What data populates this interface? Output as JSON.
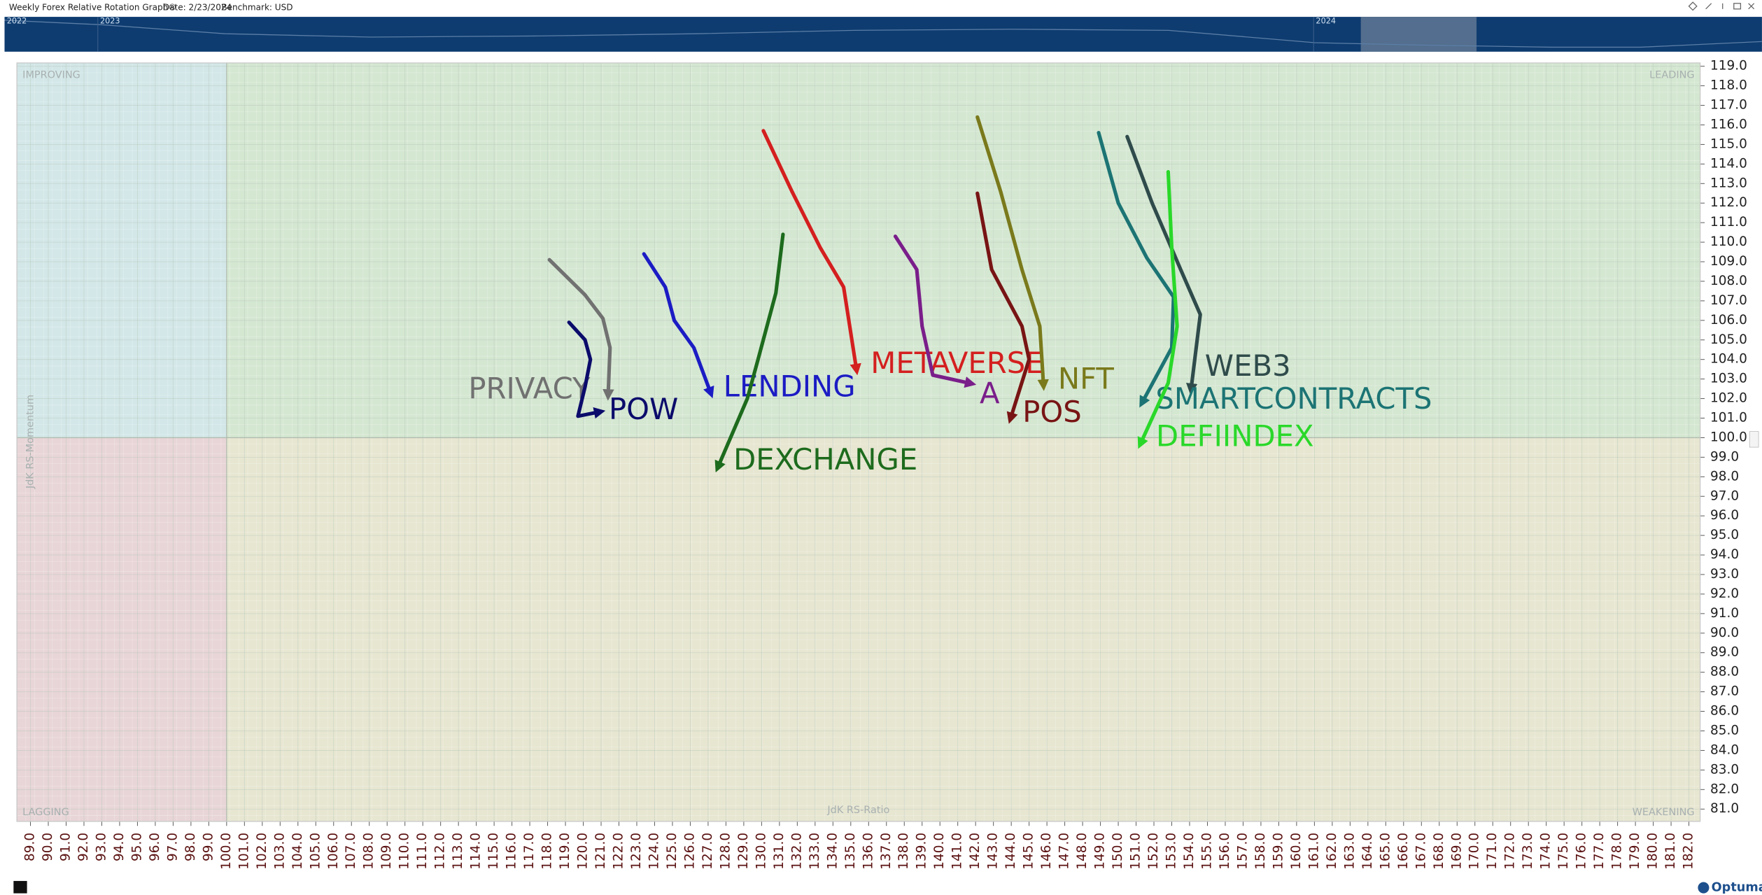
{
  "header": {
    "title": "Weekly Forex Relative Rotation Graph®",
    "date": "Date: 2/23/2024",
    "benchmark": "Benchmark:  USD"
  },
  "timeline": {
    "years": [
      "2022",
      "2023",
      "2024"
    ]
  },
  "footer": {
    "logo": "Optuma"
  },
  "chart_data": {
    "type": "rrg",
    "x_label": "JdK RS-Ratio",
    "y_label": "JdK RS-Momentum",
    "quadrants": {
      "improving": "IMPROVING",
      "leading": "LEADING",
      "lagging": "LAGGING",
      "weakening": "WEAKENING"
    },
    "quadrant_center": [
      100,
      100
    ],
    "grid": true,
    "xlim": [
      88.24,
      182.63
    ],
    "ylim": [
      80.37,
      119.17
    ],
    "xticks": [
      {
        "value": 89,
        "label": "89.0"
      },
      {
        "value": 90,
        "label": "90.0"
      },
      {
        "value": 91,
        "label": "91.0"
      },
      {
        "value": 92,
        "label": "92.0"
      },
      {
        "value": 93,
        "label": "93.0"
      },
      {
        "value": 94,
        "label": "94.0"
      },
      {
        "value": 95,
        "label": "95.0"
      },
      {
        "value": 96,
        "label": "96.0"
      },
      {
        "value": 97,
        "label": "97.0"
      },
      {
        "value": 98,
        "label": "98.0"
      },
      {
        "value": 99,
        "label": "99.0"
      },
      {
        "value": 100,
        "label": "100.0"
      },
      {
        "value": 101,
        "label": "101.0"
      },
      {
        "value": 102,
        "label": "102.0"
      },
      {
        "value": 103,
        "label": "103.0"
      },
      {
        "value": 104,
        "label": "104.0"
      },
      {
        "value": 105,
        "label": "105.0"
      },
      {
        "value": 106,
        "label": "106.0"
      },
      {
        "value": 107,
        "label": "107.0"
      },
      {
        "value": 108,
        "label": "108.0"
      },
      {
        "value": 109,
        "label": "109.0"
      },
      {
        "value": 110,
        "label": "110.0"
      },
      {
        "value": 111,
        "label": "111.0"
      },
      {
        "value": 112,
        "label": "112.0"
      },
      {
        "value": 113,
        "label": "113.0"
      },
      {
        "value": 114,
        "label": "114.0"
      },
      {
        "value": 115,
        "label": "115.0"
      },
      {
        "value": 116,
        "label": "116.0"
      },
      {
        "value": 117,
        "label": "117.0"
      },
      {
        "value": 118,
        "label": "118.0"
      },
      {
        "value": 119,
        "label": "119.0"
      },
      {
        "value": 120,
        "label": "120.0"
      },
      {
        "value": 121,
        "label": "121.0"
      },
      {
        "value": 122,
        "label": "122.0"
      },
      {
        "value": 123,
        "label": "123.0"
      },
      {
        "value": 124,
        "label": "124.0"
      },
      {
        "value": 125,
        "label": "125.0"
      },
      {
        "value": 126,
        "label": "126.0"
      },
      {
        "value": 127,
        "label": "127.0"
      },
      {
        "value": 128,
        "label": "128.0"
      },
      {
        "value": 129,
        "label": "129.0"
      },
      {
        "value": 130,
        "label": "130.0"
      },
      {
        "value": 131,
        "label": "131.0"
      },
      {
        "value": 132,
        "label": "132.0"
      },
      {
        "value": 133,
        "label": "133.0"
      },
      {
        "value": 134,
        "label": "134.0"
      },
      {
        "value": 135,
        "label": "135.0"
      },
      {
        "value": 136,
        "label": "136.0"
      },
      {
        "value": 137,
        "label": "137.0"
      },
      {
        "value": 138,
        "label": "138.0"
      },
      {
        "value": 139,
        "label": "139.0"
      },
      {
        "value": 140,
        "label": "140.0"
      },
      {
        "value": 141,
        "label": "141.0"
      },
      {
        "value": 142,
        "label": "142.0"
      },
      {
        "value": 143,
        "label": "143.0"
      },
      {
        "value": 144,
        "label": "144.0"
      },
      {
        "value": 145,
        "label": "145.0"
      },
      {
        "value": 146,
        "label": "146.0"
      },
      {
        "value": 147,
        "label": "147.0"
      },
      {
        "value": 148,
        "label": "148.0"
      },
      {
        "value": 149,
        "label": "149.0"
      },
      {
        "value": 150,
        "label": "150.0"
      },
      {
        "value": 151,
        "label": "151.0"
      },
      {
        "value": 152,
        "label": "152.0"
      },
      {
        "value": 153,
        "label": "153.0"
      },
      {
        "value": 154,
        "label": "154.0"
      },
      {
        "value": 155,
        "label": "155.0"
      },
      {
        "value": 156,
        "label": "156.0"
      },
      {
        "value": 157,
        "label": "157.0"
      },
      {
        "value": 158,
        "label": "158.0"
      },
      {
        "value": 159,
        "label": "159.0"
      },
      {
        "value": 160,
        "label": "160.0"
      },
      {
        "value": 161,
        "label": "161.0"
      },
      {
        "value": 162,
        "label": "162.0"
      },
      {
        "value": 163,
        "label": "163.0"
      },
      {
        "value": 164,
        "label": "164.0"
      },
      {
        "value": 165,
        "label": "165.0"
      },
      {
        "value": 166,
        "label": "166.0"
      },
      {
        "value": 167,
        "label": "167.0"
      },
      {
        "value": 168,
        "label": "168.0"
      },
      {
        "value": 169,
        "label": "169.0"
      },
      {
        "value": 170,
        "label": "170.0"
      },
      {
        "value": 171,
        "label": "171.0"
      },
      {
        "value": 172,
        "label": "172.0"
      },
      {
        "value": 173,
        "label": "173.0"
      },
      {
        "value": 174,
        "label": "174.0"
      },
      {
        "value": 175,
        "label": "175.0"
      },
      {
        "value": 176,
        "label": "176.0"
      },
      {
        "value": 177,
        "label": "177.0"
      },
      {
        "value": 178,
        "label": "178.0"
      },
      {
        "value": 179,
        "label": "179.0"
      },
      {
        "value": 180,
        "label": "180.0"
      },
      {
        "value": 181,
        "label": "181.0"
      },
      {
        "value": 182,
        "label": "182.0"
      }
    ],
    "yticks": [
      {
        "value": 81,
        "label": "81.0"
      },
      {
        "value": 82,
        "label": "82.0"
      },
      {
        "value": 83,
        "label": "83.0"
      },
      {
        "value": 84,
        "label": "84.0"
      },
      {
        "value": 85,
        "label": "85.0"
      },
      {
        "value": 86,
        "label": "86.0"
      },
      {
        "value": 87,
        "label": "87.0"
      },
      {
        "value": 88,
        "label": "88.0"
      },
      {
        "value": 89,
        "label": "89.0"
      },
      {
        "value": 90,
        "label": "90.0"
      },
      {
        "value": 91,
        "label": "91.0"
      },
      {
        "value": 92,
        "label": "92.0"
      },
      {
        "value": 93,
        "label": "93.0"
      },
      {
        "value": 94,
        "label": "94.0"
      },
      {
        "value": 95,
        "label": "95.0"
      },
      {
        "value": 96,
        "label": "96.0"
      },
      {
        "value": 97,
        "label": "97.0"
      },
      {
        "value": 98,
        "label": "98.0"
      },
      {
        "value": 99,
        "label": "99.0"
      },
      {
        "value": 100,
        "label": "100.0"
      },
      {
        "value": 101,
        "label": "101.0"
      },
      {
        "value": 102,
        "label": "102.0"
      },
      {
        "value": 103,
        "label": "103.0"
      },
      {
        "value": 104,
        "label": "104.0"
      },
      {
        "value": 105,
        "label": "105.0"
      },
      {
        "value": 106,
        "label": "106.0"
      },
      {
        "value": 107,
        "label": "107.0"
      },
      {
        "value": 108,
        "label": "108.0"
      },
      {
        "value": 109,
        "label": "109.0"
      },
      {
        "value": 110,
        "label": "110.0"
      },
      {
        "value": 111,
        "label": "111.0"
      },
      {
        "value": 112,
        "label": "112.0"
      },
      {
        "value": 113,
        "label": "113.0"
      },
      {
        "value": 114,
        "label": "114.0"
      },
      {
        "value": 115,
        "label": "115.0"
      },
      {
        "value": 116,
        "label": "116.0"
      },
      {
        "value": 117,
        "label": "117.0"
      },
      {
        "value": 118,
        "label": "118.0"
      },
      {
        "value": 119,
        "label": "119.0"
      }
    ],
    "series": [
      {
        "name": "PRIVACY",
        "color": "#717171",
        "x": [
          118.1,
          120.1,
          121.1,
          121.5,
          121.4
        ],
        "y": [
          109.1,
          107.3,
          106.1,
          104.6,
          102.3
        ]
      },
      {
        "name": "POW",
        "color": "#0b0b6b",
        "x": [
          119.2,
          120.1,
          120.4,
          120.1,
          119.7,
          120.8
        ],
        "y": [
          105.9,
          105.0,
          104.0,
          102.6,
          101.1,
          101.3
        ]
      },
      {
        "name": "LENDING",
        "color": "#1c1cc4",
        "x": [
          123.4,
          124.6,
          125.1,
          126.2,
          127.1
        ],
        "y": [
          109.4,
          107.7,
          106.0,
          104.6,
          102.4
        ]
      },
      {
        "name": "DEXCHANGE",
        "color": "#1d6b1d",
        "x": [
          131.2,
          130.8,
          129.8,
          129.2,
          127.6
        ],
        "y": [
          110.4,
          107.4,
          104.0,
          102.0,
          98.6
        ]
      },
      {
        "name": "METAVERSE",
        "color": "#d41f1f",
        "x": [
          130.1,
          131.7,
          133.3,
          134.6,
          135.3
        ],
        "y": [
          115.7,
          112.6,
          109.7,
          107.7,
          103.6
        ]
      },
      {
        "name": "A",
        "color": "#7a1e8a",
        "x": [
          137.5,
          138.7,
          139.0,
          139.6,
          141.6
        ],
        "y": [
          110.3,
          108.6,
          105.7,
          103.2,
          102.8
        ]
      },
      {
        "name": "POS",
        "color": "#781414",
        "x": [
          142.1,
          142.9,
          144.6,
          145.0,
          144.0
        ],
        "y": [
          112.5,
          108.6,
          105.7,
          104.0,
          101.1
        ]
      },
      {
        "name": "NFT",
        "color": "#7a7a1c",
        "x": [
          142.1,
          143.4,
          144.6,
          145.6,
          145.8
        ],
        "y": [
          116.4,
          112.6,
          108.6,
          105.7,
          102.8
        ]
      },
      {
        "name": "WEB3",
        "color": "#2f4b4b",
        "x": [
          150.5,
          151.9,
          153.5,
          154.6,
          154.1
        ],
        "y": [
          115.4,
          112.0,
          108.6,
          106.3,
          102.6
        ]
      },
      {
        "name": "SMARTCONTRACTS",
        "color": "#1c7474",
        "x": [
          148.9,
          150.0,
          151.6,
          153.1,
          153.0,
          151.4
        ],
        "y": [
          115.6,
          112.0,
          109.2,
          107.2,
          104.6,
          101.9
        ]
      },
      {
        "name": "DEFIINDEX",
        "color": "#2ad82a",
        "x": [
          152.8,
          153.0,
          153.3,
          152.8,
          151.3
        ],
        "y": [
          113.6,
          109.7,
          105.7,
          102.8,
          99.8
        ]
      }
    ]
  }
}
